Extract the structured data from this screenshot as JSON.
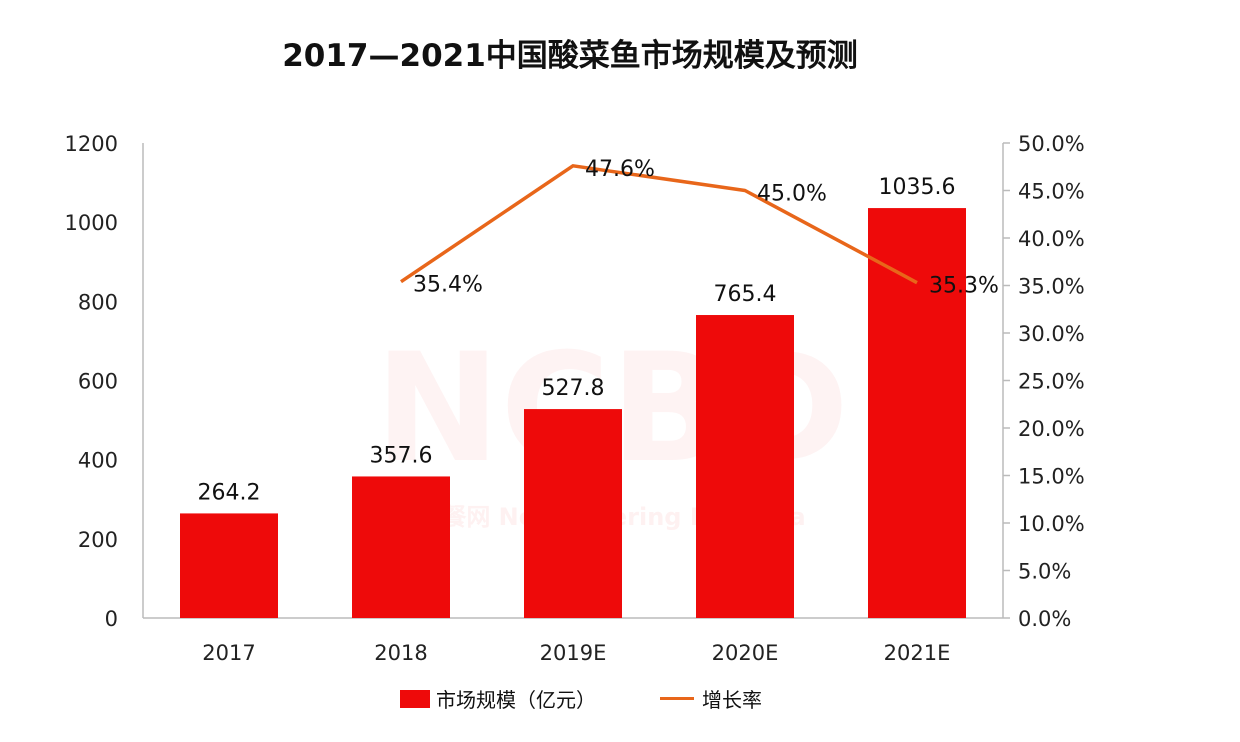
{
  "chart_data": {
    "type": "bar+line",
    "title": "2017—2021中国酸菜鱼市场规模及预测",
    "categories": [
      "2017",
      "2018",
      "2019E",
      "2020E",
      "2021E"
    ],
    "series": [
      {
        "name": "市场规模（亿元）",
        "type": "bar",
        "axis": "left",
        "color": "#ee0a0a",
        "values": [
          264.2,
          357.6,
          527.8,
          765.4,
          1035.6
        ],
        "labels": [
          "264.2",
          "357.6",
          "527.8",
          "765.4",
          "1035.6"
        ]
      },
      {
        "name": "增长率",
        "type": "line",
        "axis": "right",
        "color": "#e8661a",
        "values": [
          null,
          35.4,
          47.6,
          45.0,
          35.3
        ],
        "labels": [
          "",
          "35.4%",
          "47.6%",
          "45.0%",
          "35.3%"
        ]
      }
    ],
    "y_left": {
      "range": [
        0,
        1200
      ],
      "ticks": [
        "0",
        "200",
        "400",
        "600",
        "800",
        "1000",
        "1200"
      ]
    },
    "y_right": {
      "range": [
        0,
        50
      ],
      "ticks": [
        "0.0%",
        "5.0%",
        "10.0%",
        "15.0%",
        "20.0%",
        "25.0%",
        "30.0%",
        "35.0%",
        "40.0%",
        "45.0%",
        "50.0%"
      ]
    },
    "grid": false,
    "legend": "bottom"
  },
  "watermark": {
    "logo": "NCBD",
    "cn": "红餐网",
    "en": "New Catering Big Data"
  }
}
